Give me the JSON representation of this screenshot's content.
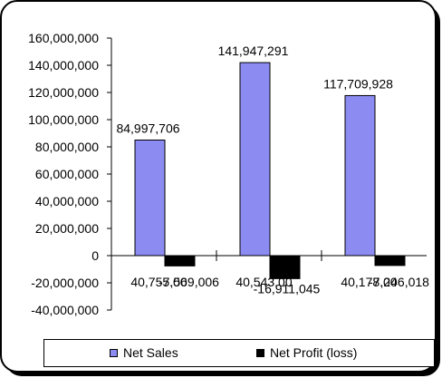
{
  "chart_data": {
    "type": "bar",
    "categories": [
      "40,755.00",
      "40,543.00",
      "40,178.00"
    ],
    "series": [
      {
        "name": "Net Sales",
        "values": [
          84997706,
          141947291,
          117709928
        ],
        "value_labels": [
          "84,997,706",
          "141,947,291",
          "117,709,928"
        ],
        "color": "#8b8bf2"
      },
      {
        "name": "Net Profit (loss)",
        "values": [
          -7569006,
          -16911045,
          -7246018
        ],
        "value_labels": [
          "-7,569,006",
          "-16,911,045",
          "-7,246,018"
        ],
        "color": "#000000"
      }
    ],
    "y_ticks": [
      {
        "value": 160000000,
        "label": "160,000,000"
      },
      {
        "value": 140000000,
        "label": "140,000,000"
      },
      {
        "value": 120000000,
        "label": "120,000,000"
      },
      {
        "value": 100000000,
        "label": "100,000,000"
      },
      {
        "value": 80000000,
        "label": "80,000,000"
      },
      {
        "value": 60000000,
        "label": "60,000,000"
      },
      {
        "value": 40000000,
        "label": "40,000,000"
      },
      {
        "value": 20000000,
        "label": "20,000,000"
      },
      {
        "value": 0,
        "label": "0"
      },
      {
        "value": -20000000,
        "label": "-20,000,000"
      },
      {
        "value": -40000000,
        "label": "-40,000,000"
      }
    ],
    "ylim": [
      -40000000,
      160000000
    ],
    "grid": false,
    "legend_position": "bottom",
    "title": "",
    "xlabel": "",
    "ylabel": ""
  },
  "legend": {
    "net_sales_label": "Net Sales",
    "net_profit_label": "Net Profit (loss)"
  }
}
